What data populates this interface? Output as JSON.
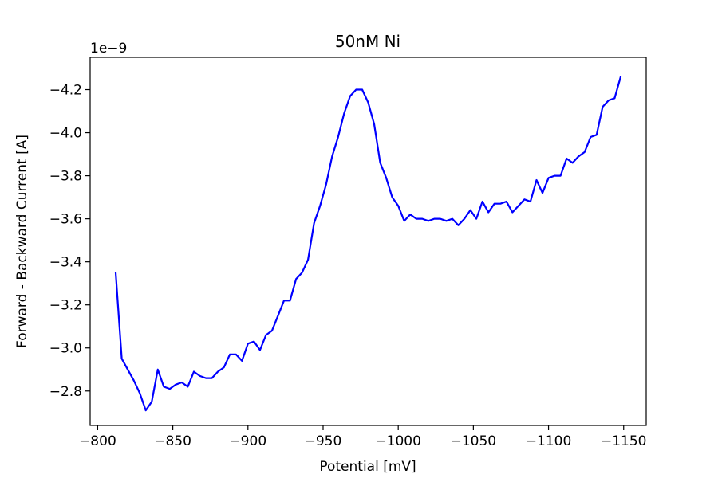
{
  "chart_data": {
    "type": "line",
    "title": "50nM Ni",
    "xlabel": "Potential [mV]",
    "ylabel": "Forward - Backward Current [A]",
    "y_offset_text": "1e−9",
    "xlim": [
      -795,
      -1165
    ],
    "ylim": [
      -2.64,
      -4.35
    ],
    "x_ticks": [
      -800,
      -850,
      -900,
      -950,
      -1000,
      -1050,
      -1100,
      -1150
    ],
    "x_tick_labels": [
      "−800",
      "−850",
      "−900",
      "−950",
      "−1000",
      "−1050",
      "−1100",
      "−1150"
    ],
    "y_ticks": [
      -2.8,
      -3.0,
      -3.2,
      -3.4,
      -3.6,
      -3.8,
      -4.0,
      -4.2
    ],
    "y_tick_labels": [
      "−2.8",
      "−3.0",
      "−3.2",
      "−3.4",
      "−3.6",
      "−3.8",
      "−4.0",
      "−4.2"
    ],
    "grid": false,
    "series": [
      {
        "color": "#0000ff",
        "x": [
          -812,
          -816,
          -820,
          -824,
          -828,
          -832,
          -836,
          -840,
          -844,
          -848,
          -852,
          -856,
          -860,
          -864,
          -868,
          -872,
          -876,
          -880,
          -884,
          -888,
          -892,
          -896,
          -900,
          -904,
          -908,
          -912,
          -916,
          -920,
          -924,
          -928,
          -932,
          -936,
          -940,
          -944,
          -948,
          -952,
          -956,
          -960,
          -964,
          -968,
          -972,
          -976,
          -980,
          -984,
          -988,
          -992,
          -996,
          -1000,
          -1004,
          -1008,
          -1012,
          -1016,
          -1020,
          -1024,
          -1028,
          -1032,
          -1036,
          -1040,
          -1044,
          -1048,
          -1052,
          -1056,
          -1060,
          -1064,
          -1068,
          -1072,
          -1076,
          -1080,
          -1084,
          -1088,
          -1092,
          -1096,
          -1100,
          -1104,
          -1108,
          -1112,
          -1116,
          -1120,
          -1124,
          -1128,
          -1132,
          -1136,
          -1140,
          -1144,
          -1148
        ],
        "y": [
          -3.35,
          -2.95,
          -2.9,
          -2.85,
          -2.79,
          -2.71,
          -2.75,
          -2.9,
          -2.82,
          -2.81,
          -2.83,
          -2.84,
          -2.82,
          -2.89,
          -2.87,
          -2.86,
          -2.86,
          -2.89,
          -2.91,
          -2.97,
          -2.97,
          -2.94,
          -3.02,
          -3.03,
          -2.99,
          -3.06,
          -3.08,
          -3.15,
          -3.22,
          -3.22,
          -3.32,
          -3.35,
          -3.41,
          -3.58,
          -3.66,
          -3.76,
          -3.89,
          -3.98,
          -4.09,
          -4.17,
          -4.2,
          -4.2,
          -4.14,
          -4.04,
          -3.86,
          -3.79,
          -3.7,
          -3.66,
          -3.59,
          -3.62,
          -3.6,
          -3.6,
          -3.59,
          -3.6,
          -3.6,
          -3.59,
          -3.6,
          -3.57,
          -3.6,
          -3.64,
          -3.6,
          -3.68,
          -3.63,
          -3.67,
          -3.67,
          -3.68,
          -3.63,
          -3.66,
          -3.69,
          -3.68,
          -3.78,
          -3.72,
          -3.79,
          -3.8,
          -3.8,
          -3.88,
          -3.86,
          -3.89,
          -3.91,
          -3.98,
          -3.99,
          -4.12,
          -4.15,
          -4.16,
          -4.26
        ]
      }
    ]
  }
}
